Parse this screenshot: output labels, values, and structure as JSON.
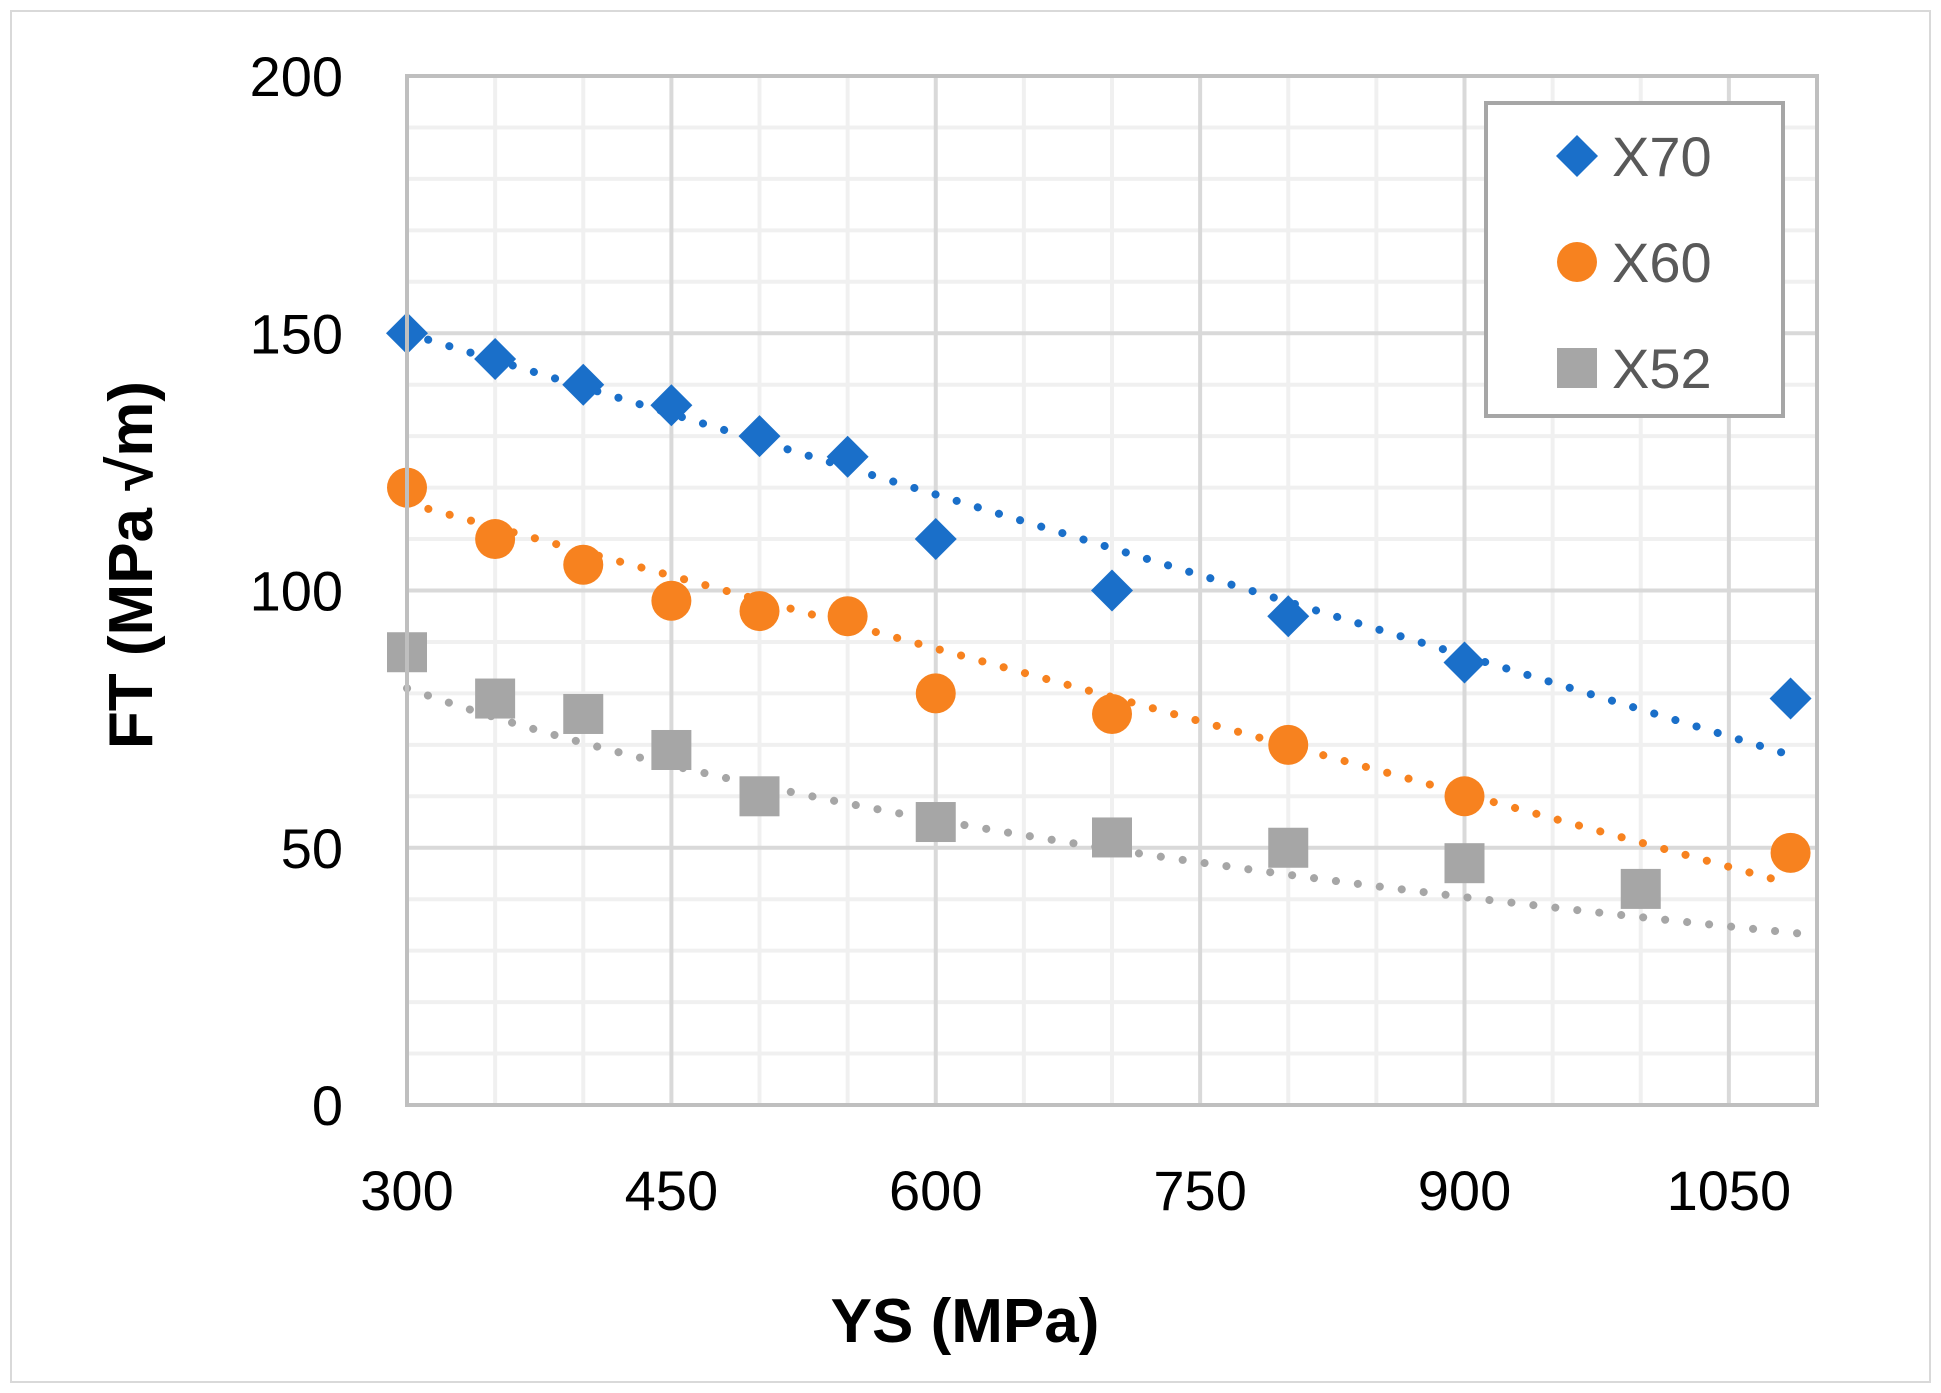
{
  "chart_data": {
    "type": "scatter",
    "title": "",
    "xlabel": "YS (MPa)",
    "ylabel": "FT (MPa √m)",
    "xlim": [
      300,
      1100
    ],
    "ylim": [
      0,
      200
    ],
    "xticks": [
      300,
      450,
      600,
      750,
      900,
      1050
    ],
    "xtick_labels": [
      "300",
      "450",
      "600",
      "750",
      "900",
      "1050"
    ],
    "xminor": [
      350,
      400,
      500,
      550,
      650,
      700,
      800,
      850,
      950,
      1000
    ],
    "yticks": [
      0,
      50,
      100,
      150,
      200
    ],
    "ytick_labels": [
      "0",
      "50",
      "100",
      "150",
      "200"
    ],
    "yminor": [
      10,
      20,
      30,
      40,
      60,
      70,
      80,
      90,
      110,
      120,
      130,
      140,
      160,
      170,
      180,
      190
    ],
    "grid": true,
    "legend_position": "top-right",
    "series": [
      {
        "name": "X70",
        "marker": "diamond",
        "color": "#1a6fc9",
        "x": [
          300,
          350,
          400,
          450,
          500,
          550,
          600,
          700,
          800,
          900,
          1085
        ],
        "y": [
          150,
          145,
          140,
          136,
          130,
          126,
          110,
          100,
          95,
          86,
          79
        ],
        "trendline": {
          "kind": "linear-dotted",
          "x": [
            300,
            1085
          ],
          "y": [
            150,
            68
          ]
        }
      },
      {
        "name": "X60",
        "marker": "circle",
        "color": "#f7821f",
        "x": [
          300,
          350,
          400,
          450,
          500,
          550,
          600,
          700,
          800,
          900,
          1085
        ],
        "y": [
          120,
          110,
          105,
          98,
          96,
          95,
          80,
          76,
          70,
          60,
          49
        ],
        "trendline": {
          "kind": "linear-dotted",
          "x": [
            300,
            1085
          ],
          "y": [
            117,
            43
          ]
        }
      },
      {
        "name": "X52",
        "marker": "square",
        "color": "#a6a6a6",
        "x": [
          300,
          350,
          400,
          450,
          500,
          600,
          700,
          800,
          900,
          1000
        ],
        "y": [
          88,
          79,
          76,
          69,
          60,
          55,
          52,
          50,
          47,
          42
        ],
        "trendline": {
          "kind": "log-dotted",
          "x": [
            300,
            1100
          ],
          "y": [
            81,
            33
          ]
        }
      }
    ]
  }
}
